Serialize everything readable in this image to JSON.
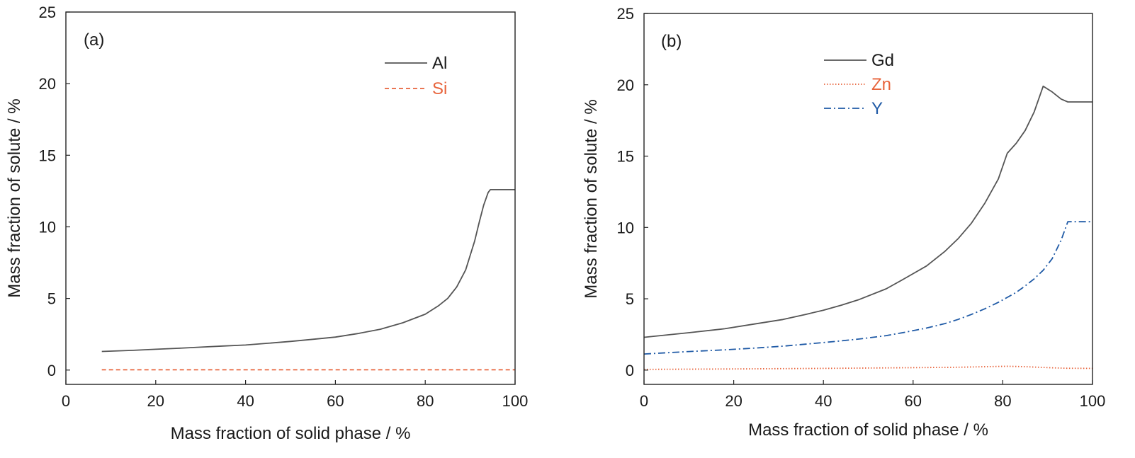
{
  "chart_data": [
    {
      "type": "line",
      "panel_label": "(a)",
      "xlabel": "Mass fraction of solid phase / %",
      "ylabel": "Mass fraction of solute / %",
      "xlim": [
        0,
        100
      ],
      "ylim": [
        -1,
        25
      ],
      "xticks": [
        0,
        20,
        40,
        60,
        80,
        100
      ],
      "yticks": [
        0,
        5,
        10,
        15,
        20,
        25
      ],
      "grid": false,
      "legend_position": "top-right",
      "series": [
        {
          "name": "Al",
          "color": "#555555",
          "style": "solid",
          "x": [
            8,
            15,
            20,
            25,
            30,
            35,
            40,
            45,
            50,
            55,
            60,
            65,
            70,
            75,
            80,
            83,
            85,
            87,
            89,
            90,
            91,
            92,
            93,
            94,
            94.5,
            100
          ],
          "y": [
            1.3,
            1.38,
            1.45,
            1.52,
            1.6,
            1.68,
            1.75,
            1.87,
            2.0,
            2.15,
            2.3,
            2.55,
            2.85,
            3.3,
            3.9,
            4.5,
            5.0,
            5.8,
            7.0,
            8.0,
            9.0,
            10.3,
            11.5,
            12.4,
            12.6,
            12.6
          ]
        },
        {
          "name": "Si",
          "color": "#e8643c",
          "style": "dashed",
          "x": [
            8,
            100
          ],
          "y": [
            0.02,
            0.02
          ]
        }
      ]
    },
    {
      "type": "line",
      "panel_label": "(b)",
      "xlabel": "Mass fraction of solid phase / %",
      "ylabel": "Mass fraction of solute / %",
      "xlim": [
        0,
        100
      ],
      "ylim": [
        -1,
        25
      ],
      "xticks": [
        0,
        20,
        40,
        60,
        80,
        100
      ],
      "yticks": [
        0,
        5,
        10,
        15,
        20,
        25
      ],
      "grid": false,
      "legend_position": "top-center",
      "series": [
        {
          "name": "Gd",
          "color": "#555555",
          "style": "solid",
          "x": [
            0,
            10,
            18,
            25,
            31,
            36,
            40,
            44,
            48,
            54,
            58,
            63,
            67,
            70,
            73,
            76,
            79,
            81,
            83,
            85,
            87,
            89,
            91,
            93,
            94.5,
            100
          ],
          "y": [
            2.3,
            2.62,
            2.9,
            3.25,
            3.55,
            3.9,
            4.2,
            4.55,
            4.95,
            5.7,
            6.4,
            7.3,
            8.3,
            9.2,
            10.3,
            11.7,
            13.4,
            15.2,
            15.9,
            16.8,
            18.1,
            19.9,
            19.5,
            19.0,
            18.8,
            18.8
          ]
        },
        {
          "name": "Zn",
          "color": "#e8643c",
          "style": "dotted",
          "x": [
            0,
            20,
            40,
            60,
            70,
            81,
            85,
            88,
            91,
            94,
            100
          ],
          "y": [
            0.05,
            0.08,
            0.12,
            0.17,
            0.2,
            0.27,
            0.24,
            0.2,
            0.16,
            0.13,
            0.12
          ]
        },
        {
          "name": "Y",
          "color": "#1f5aa6",
          "style": "dashdot",
          "x": [
            0,
            10,
            18,
            25,
            31,
            36,
            40,
            44,
            48,
            54,
            58,
            63,
            67,
            70,
            73,
            76,
            79,
            81,
            83,
            85,
            87,
            89,
            91,
            93,
            94.5,
            100
          ],
          "y": [
            1.13,
            1.3,
            1.42,
            1.55,
            1.68,
            1.82,
            1.93,
            2.05,
            2.18,
            2.42,
            2.64,
            2.95,
            3.25,
            3.55,
            3.9,
            4.3,
            4.75,
            5.1,
            5.45,
            5.9,
            6.4,
            7.0,
            7.8,
            9.1,
            10.4,
            10.4
          ]
        }
      ]
    }
  ]
}
